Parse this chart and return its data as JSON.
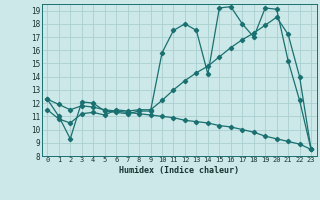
{
  "xlabel": "Humidex (Indice chaleur)",
  "bg_color": "#cce8e8",
  "grid_color": "#aacfcf",
  "line_color": "#1a7070",
  "xlim": [
    -0.5,
    23.5
  ],
  "ylim": [
    8,
    19.5
  ],
  "xticks": [
    0,
    1,
    2,
    3,
    4,
    5,
    6,
    7,
    8,
    9,
    10,
    11,
    12,
    13,
    14,
    15,
    16,
    17,
    18,
    19,
    20,
    21,
    22,
    23
  ],
  "yticks": [
    8,
    9,
    10,
    11,
    12,
    13,
    14,
    15,
    16,
    17,
    18,
    19
  ],
  "line1_x": [
    0,
    1,
    2,
    3,
    4,
    5,
    6,
    7,
    8,
    9,
    10,
    11,
    12,
    13,
    14,
    15,
    16,
    17,
    18,
    19,
    20,
    21,
    22,
    23
  ],
  "line1_y": [
    12.3,
    11.0,
    9.3,
    12.1,
    12.0,
    11.4,
    11.3,
    11.2,
    11.4,
    11.4,
    15.8,
    17.5,
    18.0,
    17.5,
    14.2,
    19.2,
    19.3,
    18.0,
    17.0,
    19.2,
    19.1,
    15.2,
    12.2,
    8.5
  ],
  "line2_x": [
    0,
    1,
    2,
    3,
    4,
    5,
    6,
    7,
    8,
    9,
    10,
    11,
    12,
    13,
    14,
    15,
    16,
    17,
    18,
    19,
    20,
    21,
    22,
    23
  ],
  "line2_y": [
    11.5,
    10.8,
    10.5,
    11.2,
    11.3,
    11.1,
    11.5,
    11.4,
    11.5,
    11.5,
    12.2,
    13.0,
    13.7,
    14.3,
    14.8,
    15.5,
    16.2,
    16.8,
    17.3,
    17.9,
    18.5,
    17.2,
    14.0,
    8.5
  ],
  "line3_x": [
    0,
    1,
    2,
    3,
    4,
    5,
    6,
    7,
    8,
    9,
    10,
    11,
    12,
    13,
    14,
    15,
    16,
    17,
    18,
    19,
    20,
    21,
    22,
    23
  ],
  "line3_y": [
    12.3,
    11.9,
    11.5,
    11.8,
    11.7,
    11.5,
    11.4,
    11.3,
    11.2,
    11.1,
    11.0,
    10.9,
    10.7,
    10.6,
    10.5,
    10.3,
    10.2,
    10.0,
    9.8,
    9.5,
    9.3,
    9.1,
    8.9,
    8.5
  ]
}
